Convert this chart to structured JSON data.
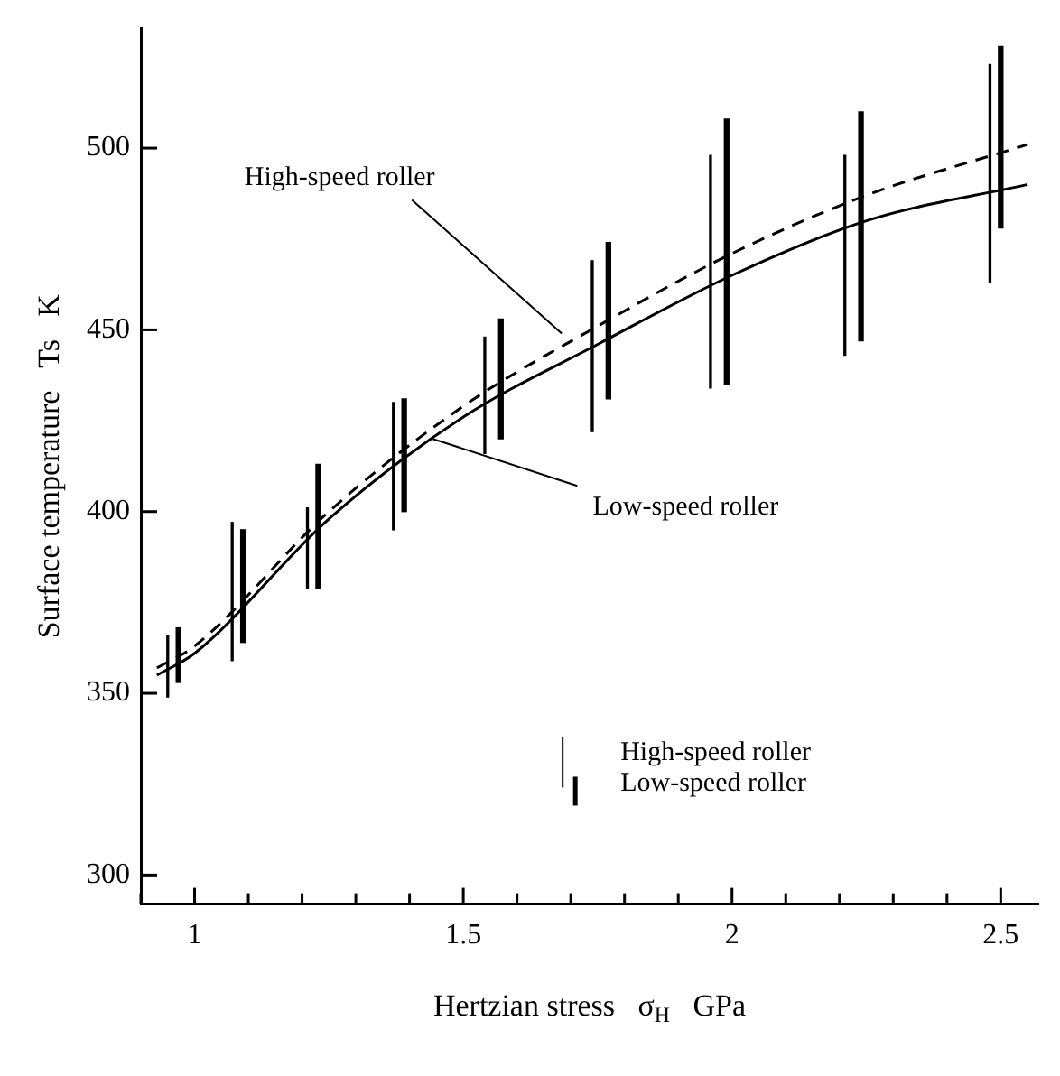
{
  "chart_data": {
    "type": "bar",
    "xlabel": "Hertzian stress   σ$_{H}$   GPa",
    "ylabel": "Surface temperature   Ts   K",
    "xlim": [
      0.9,
      2.57
    ],
    "ylim": [
      292,
      533
    ],
    "xticks": [
      {
        "value": 0.9,
        "label": null
      },
      1,
      {
        "value": 1.1,
        "label": null
      },
      {
        "value": 1.2,
        "label": null
      },
      {
        "value": 1.3,
        "label": null
      },
      {
        "value": 1.4,
        "label": null
      },
      1.5,
      {
        "value": 1.6,
        "label": null
      },
      {
        "value": 1.7,
        "label": null
      },
      {
        "value": 1.8,
        "label": null
      },
      {
        "value": 1.9,
        "label": null
      },
      2,
      {
        "value": 2.1,
        "label": null
      },
      {
        "value": 2.2,
        "label": null
      },
      {
        "value": 2.3,
        "label": null
      },
      {
        "value": 2.4,
        "label": null
      },
      2.5
    ],
    "yticks": [
      300,
      350,
      400,
      450,
      500
    ],
    "grid": false,
    "legend": "bottom right",
    "series": [
      {
        "name": "High-speed roller",
        "color": "#000000",
        "x": [
          0.95,
          1.07,
          1.21,
          1.37,
          1.54,
          1.74,
          1.96,
          2.21,
          2.48
        ],
        "base": [
          349,
          359,
          379,
          395,
          416,
          422,
          434,
          443,
          463
        ],
        "values": [
          17,
          38,
          22,
          35,
          32,
          47,
          64,
          55,
          60
        ]
      },
      {
        "name": "Low-speed roller",
        "color": "#000000",
        "x": [
          0.97,
          1.09,
          1.23,
          1.39,
          1.57,
          1.77,
          1.99,
          2.24,
          2.5
        ],
        "base": [
          353,
          364,
          379,
          400,
          420,
          431,
          435,
          447,
          478
        ],
        "values": [
          15,
          31,
          34,
          31,
          33,
          43,
          73,
          63,
          50
        ]
      },
      {
        "type": "line",
        "color": "#000000",
        "line_style": "dashed",
        "x": [
          0.93,
          1,
          1.25,
          1.5,
          1.75,
          2,
          2.25,
          2.55
        ],
        "values": [
          357,
          363,
          400,
          429,
          451,
          471,
          487,
          501
        ]
      },
      {
        "type": "line",
        "color": "#000000",
        "line_style": "solid",
        "x": [
          0.93,
          1,
          1.25,
          1.5,
          1.75,
          2,
          2.25,
          2.55
        ],
        "values": [
          355,
          361,
          398,
          426,
          446,
          465,
          480,
          490
        ]
      }
    ],
    "annotations": [
      {
        "text": "High-speed roller",
        "x": 1.69,
        "y": 448
      },
      {
        "text": "Low-speed roller",
        "x": 1.45,
        "y": 421
      }
    ]
  }
}
